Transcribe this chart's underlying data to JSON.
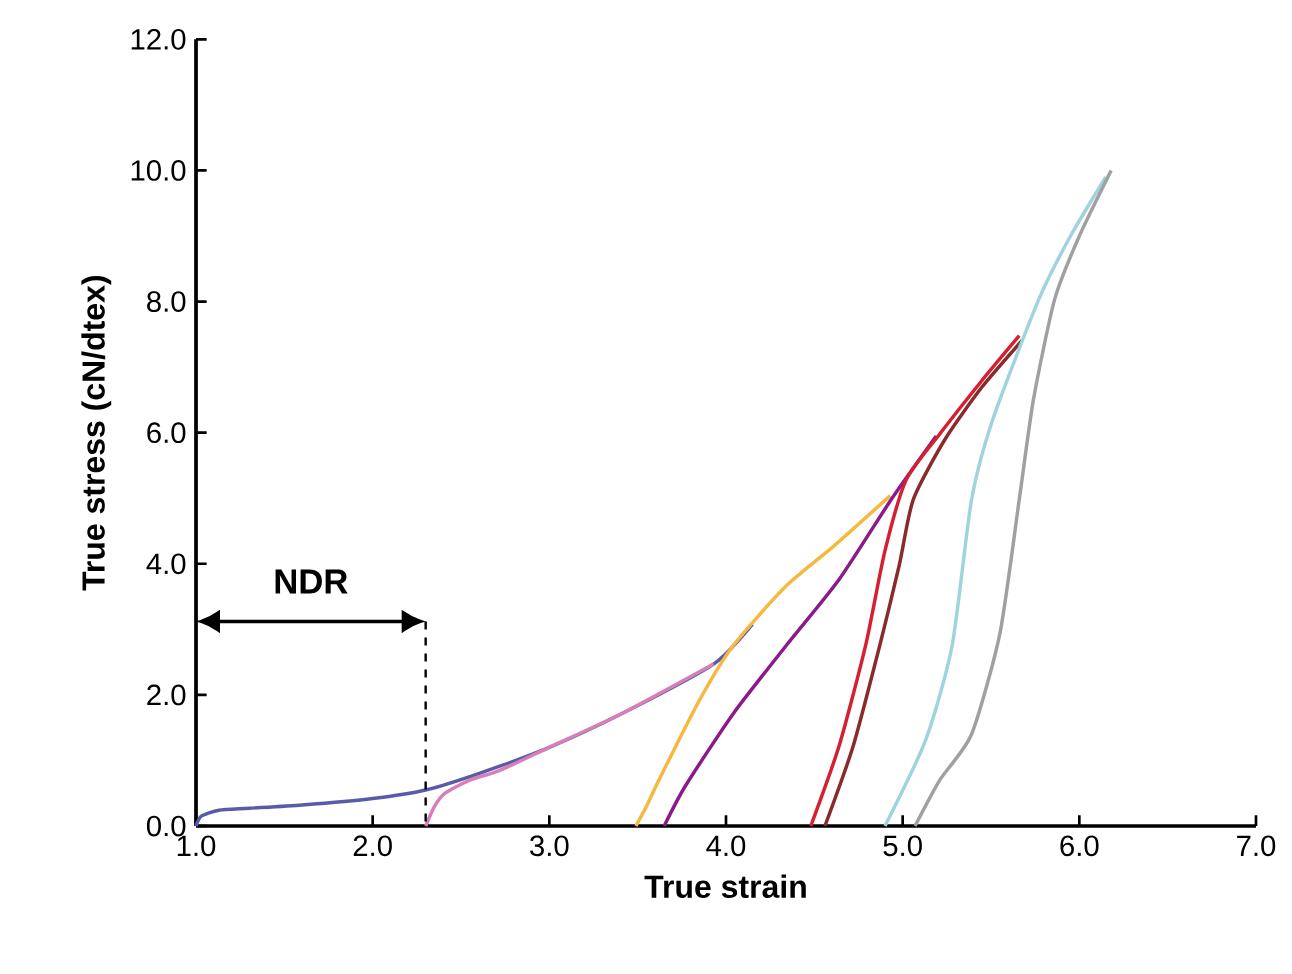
{
  "chart_data": {
    "type": "line",
    "xlabel": "True strain",
    "ylabel": "True stress (cN/dtex)",
    "xlim": [
      1,
      7
    ],
    "ylim": [
      0,
      12
    ],
    "xticks": [
      {
        "value": 1,
        "label": "1.0"
      },
      {
        "value": 2,
        "label": "2.0"
      },
      {
        "value": 3,
        "label": "3.0"
      },
      {
        "value": 4,
        "label": "4.0"
      },
      {
        "value": 5,
        "label": "5.0"
      },
      {
        "value": 6,
        "label": "6.0"
      },
      {
        "value": 7,
        "label": "7.0"
      }
    ],
    "yticks": [
      {
        "value": 0,
        "label": "0.0"
      },
      {
        "value": 2,
        "label": "2.0"
      },
      {
        "value": 4,
        "label": "4.0"
      },
      {
        "value": 6,
        "label": "6.0"
      },
      {
        "value": 8,
        "label": "8.0"
      },
      {
        "value": 10,
        "label": "10.0"
      },
      {
        "value": 12,
        "label": "12.0"
      }
    ],
    "grid": false,
    "marker": "none",
    "line_style": "solid",
    "ref_lines": [
      {
        "axis": "x",
        "value": 2.3,
        "color": "#000000",
        "line_style": "dashed"
      }
    ],
    "annotations": [
      "NDR"
    ],
    "series": [
      {
        "color": "#5a5aaa",
        "x": [
          1.0,
          1.03,
          1.13,
          1.3,
          1.6,
          2.0,
          2.3,
          2.6,
          3.0,
          3.4,
          3.93,
          4.15
        ],
        "values": [
          0,
          0.15,
          0.24,
          0.27,
          0.32,
          0.42,
          0.55,
          0.8,
          1.2,
          1.7,
          2.47,
          3.08
        ]
      },
      {
        "color": "#d67fb8",
        "x": [
          2.3,
          2.35,
          2.41,
          2.55,
          2.72,
          3.0,
          3.4,
          3.93
        ],
        "values": [
          0,
          0.3,
          0.5,
          0.7,
          0.85,
          1.2,
          1.7,
          2.47
        ]
      },
      {
        "color": "#f5b942",
        "x": [
          3.49,
          3.55,
          3.62,
          3.85,
          4.04,
          4.34,
          4.61,
          4.93
        ],
        "values": [
          0,
          0.3,
          0.7,
          1.92,
          2.75,
          3.66,
          4.27,
          5.04
        ]
      },
      {
        "color": "#8b1a8b",
        "x": [
          3.65,
          3.77,
          4.04,
          4.34,
          4.64,
          4.94,
          5.19
        ],
        "values": [
          0,
          0.61,
          1.71,
          2.75,
          3.76,
          5.0,
          5.95
        ]
      },
      {
        "color": "#d42030",
        "x": [
          4.48,
          4.64,
          4.79,
          4.9,
          5.02,
          5.21,
          5.45,
          5.66
        ],
        "values": [
          0,
          1.22,
          2.75,
          4.2,
          5.28,
          5.98,
          6.8,
          7.48
        ]
      },
      {
        "color": "#8b2a2a",
        "x": [
          4.56,
          4.72,
          4.87,
          4.98,
          5.06,
          5.24,
          5.45,
          5.68
        ],
        "values": [
          0,
          1.22,
          2.75,
          3.97,
          4.98,
          5.9,
          6.7,
          7.42
        ]
      },
      {
        "color": "#9fd4de",
        "x": [
          4.9,
          5.13,
          5.28,
          5.39,
          5.51,
          5.77,
          5.95,
          6.15
        ],
        "values": [
          0,
          1.31,
          2.75,
          4.98,
          6.2,
          8.03,
          9.0,
          9.9
        ]
      },
      {
        "color": "#a0a0a0",
        "x": [
          5.07,
          5.21,
          5.39,
          5.55,
          5.66,
          5.74,
          5.86,
          6.0,
          6.18
        ],
        "values": [
          0,
          0.7,
          1.4,
          2.93,
          4.98,
          6.5,
          8.03,
          9.0,
          10.0
        ]
      }
    ]
  }
}
